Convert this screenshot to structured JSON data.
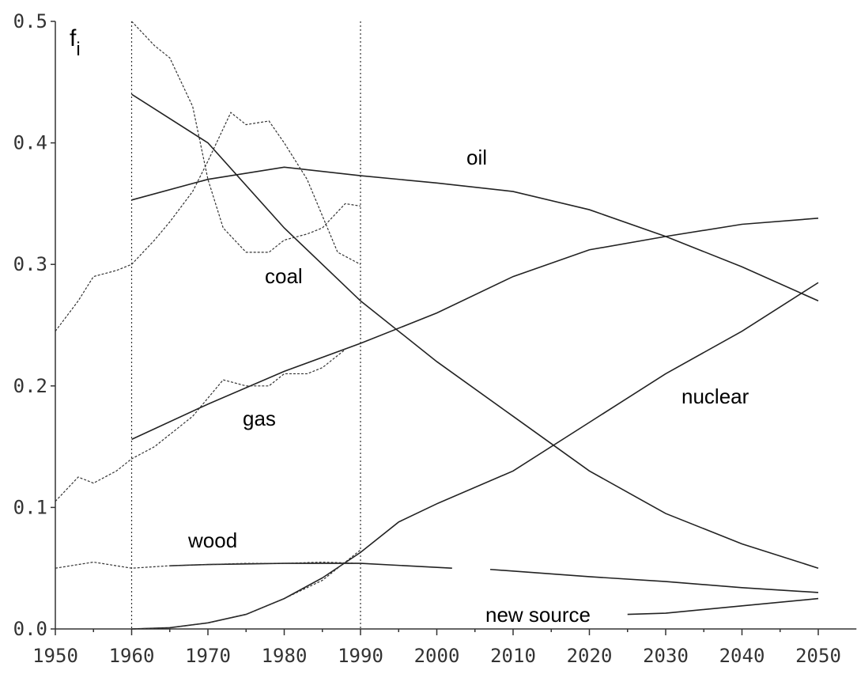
{
  "chart_data": {
    "type": "line",
    "ylabel": {
      "text": "f",
      "subscript": "i"
    },
    "xlim": [
      1950,
      2055
    ],
    "ylim": [
      0,
      0.5
    ],
    "xticks": [
      1950,
      1960,
      1970,
      1980,
      1990,
      2000,
      2010,
      2020,
      2030,
      2040,
      2050
    ],
    "xminor": [
      1955,
      1965,
      1975,
      1985,
      1995,
      2005,
      2015,
      2025,
      2035,
      2045
    ],
    "yticks": [
      {
        "value": 0,
        "label": "0.0"
      },
      0.1,
      0.2,
      0.3,
      0.4,
      0.5
    ],
    "vlines": [
      1960,
      1990
    ],
    "series": [
      {
        "name": "oil",
        "style": "solid",
        "color": "#222222",
        "x": [
          1960,
          1970,
          1980,
          1990,
          2000,
          2010,
          2020,
          2030,
          2040,
          2050
        ],
        "values": [
          0.353,
          0.37,
          0.38,
          0.373,
          0.367,
          0.36,
          0.345,
          0.323,
          0.298,
          0.27
        ]
      },
      {
        "name": "coal",
        "style": "solid",
        "color": "#222222",
        "x": [
          1960,
          1970,
          1980,
          1990,
          2000,
          2010,
          2020,
          2030,
          2040,
          2050
        ],
        "values": [
          0.44,
          0.4,
          0.33,
          0.27,
          0.22,
          0.175,
          0.13,
          0.095,
          0.07,
          0.05
        ]
      },
      {
        "name": "gas",
        "style": "solid",
        "color": "#222222",
        "x": [
          1960,
          1970,
          1980,
          1990,
          2000,
          2010,
          2020,
          2030,
          2040,
          2050
        ],
        "values": [
          0.156,
          0.185,
          0.212,
          0.235,
          0.26,
          0.29,
          0.312,
          0.323,
          0.333,
          0.338
        ]
      },
      {
        "name": "nuclear",
        "style": "solid",
        "color": "#222222",
        "x": [
          1960,
          1965,
          1970,
          1975,
          1980,
          1985,
          1990,
          1995,
          2000,
          2010,
          2020,
          2030,
          2040,
          2050
        ],
        "values": [
          0,
          0.001,
          0.005,
          0.012,
          0.025,
          0.042,
          0.063,
          0.088,
          0.103,
          0.13,
          0.17,
          0.21,
          0.245,
          0.285
        ]
      },
      {
        "name": "wood",
        "style": "solid",
        "color": "#222222",
        "x": [
          1965,
          1970,
          1980,
          1990,
          2002,
          2005,
          2007,
          2020,
          2030,
          2040,
          2050
        ],
        "values": [
          0.052,
          0.053,
          0.054,
          0.054,
          0.05,
          null,
          0.049,
          0.043,
          0.039,
          0.034,
          0.03
        ]
      },
      {
        "name": "new source",
        "style": "solid",
        "color": "#222222",
        "x": [
          2025,
          2030,
          2040,
          2050
        ],
        "values": [
          0.012,
          0.013,
          0.019,
          0.025
        ]
      },
      {
        "style": "dashed",
        "color": "#333333",
        "x": [
          1950,
          1953,
          1955,
          1958,
          1960,
          1963,
          1965,
          1968,
          1970,
          1973,
          1975,
          1978,
          1980,
          1983,
          1985,
          1987,
          1990
        ],
        "values": [
          0.245,
          0.27,
          0.29,
          0.295,
          0.3,
          0.32,
          0.335,
          0.36,
          0.385,
          0.425,
          0.415,
          0.418,
          0.4,
          0.37,
          0.34,
          0.31,
          0.3
        ]
      },
      {
        "style": "dashed",
        "color": "#333333",
        "x": [
          1960,
          1963,
          1965,
          1968,
          1970,
          1972,
          1975,
          1978,
          1980,
          1983,
          1985,
          1988,
          1990
        ],
        "values": [
          0.5,
          0.48,
          0.47,
          0.43,
          0.37,
          0.33,
          0.31,
          0.31,
          0.32,
          0.325,
          0.33,
          0.35,
          0.348
        ]
      },
      {
        "style": "dashed",
        "color": "#333333",
        "x": [
          1950,
          1953,
          1955,
          1958,
          1960,
          1963,
          1965,
          1968,
          1970,
          1972,
          1975,
          1978,
          1980,
          1983,
          1985,
          1988
        ],
        "values": [
          0.105,
          0.125,
          0.12,
          0.13,
          0.14,
          0.15,
          0.16,
          0.175,
          0.19,
          0.205,
          0.2,
          0.2,
          0.21,
          0.21,
          0.215,
          0.23
        ]
      },
      {
        "style": "dashed",
        "color": "#333333",
        "x": [
          1960,
          1965,
          1970,
          1975,
          1980,
          1985,
          1990
        ],
        "values": [
          0,
          0.001,
          0.005,
          0.012,
          0.025,
          0.04,
          0.065
        ]
      },
      {
        "style": "dashed",
        "color": "#333333",
        "x": [
          1950,
          1955,
          1960,
          1965,
          1970,
          1975,
          1980,
          1985,
          1990
        ],
        "values": [
          0.05,
          0.055,
          0.05,
          0.052,
          0.053,
          0.054,
          0.054,
          0.055,
          0.054
        ]
      }
    ]
  }
}
